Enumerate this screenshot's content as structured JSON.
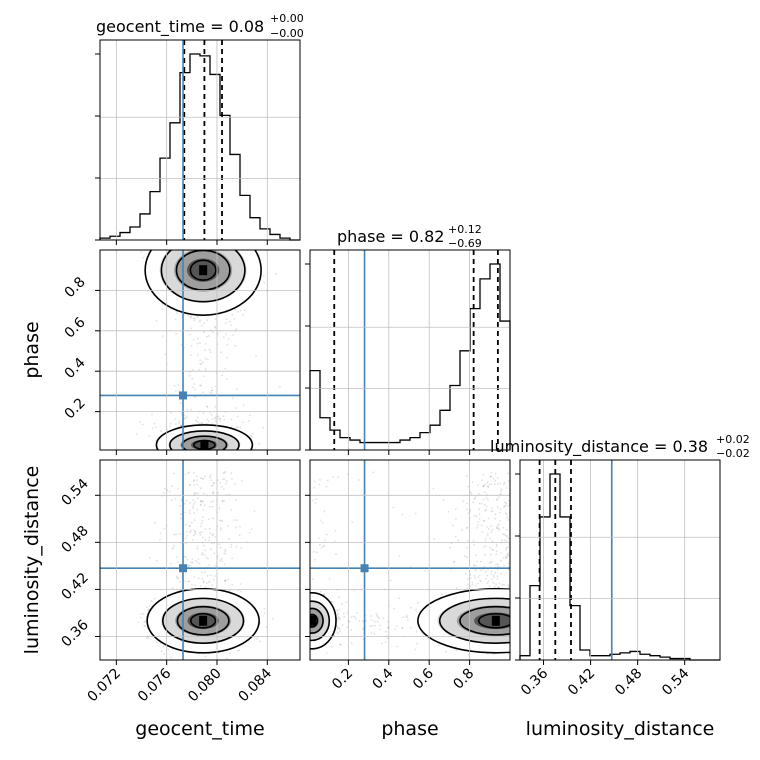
{
  "chart_data": {
    "type": "corner",
    "parameters": [
      "geocent_time",
      "phase",
      "luminosity_distance"
    ],
    "truths": {
      "geocent_time": 0.0773,
      "phase": 0.28,
      "luminosity_distance": 0.447
    },
    "titles": [
      {
        "param": "geocent_time",
        "main": "geocent_time = 0.08",
        "sup": "+0.00",
        "sub": "−0.00"
      },
      {
        "param": "phase",
        "main": "phase = 0.82",
        "sup": "+0.12",
        "sub": "−0.69"
      },
      {
        "param": "luminosity_distance",
        "main": "luminosity_distance = 0.38",
        "sup": "+0.02",
        "sub": "−0.02"
      }
    ],
    "axes": {
      "geocent_time": {
        "label": "geocent_time",
        "range": [
          0.0707,
          0.0866
        ],
        "ticks": [
          0.072,
          0.076,
          0.08,
          0.084
        ],
        "tick_labels": [
          "0.072",
          "0.076",
          "0.080",
          "0.084"
        ]
      },
      "phase": {
        "label": "phase",
        "range": [
          0.01,
          1.0
        ],
        "ticks": [
          0.2,
          0.4,
          0.6,
          0.8
        ],
        "tick_labels": [
          "0.2",
          "0.4",
          "0.6",
          "0.8"
        ]
      },
      "luminosity_distance": {
        "label": "luminosity_distance",
        "range": [
          0.33,
          0.585
        ],
        "ticks": [
          0.36,
          0.42,
          0.48,
          0.54
        ],
        "tick_labels": [
          "0.36",
          "0.42",
          "0.48",
          "0.54"
        ]
      }
    },
    "histograms": {
      "geocent_time": {
        "range": [
          0.0707,
          0.0866
        ],
        "counts": [
          1,
          2,
          4,
          7,
          14,
          26,
          44,
          63,
          90,
          100,
          99,
          89,
          67,
          46,
          24,
          12,
          6,
          3,
          1,
          0
        ],
        "quantiles": [
          0.0774,
          0.079,
          0.0804
        ]
      },
      "phase": {
        "range": [
          0.01,
          1.0
        ],
        "counts": [
          32,
          13,
          8,
          5,
          4,
          3,
          3,
          3,
          3,
          4,
          5,
          7,
          10,
          16,
          26,
          40,
          57,
          69,
          75,
          52
        ],
        "quantiles": [
          0.13,
          0.82,
          0.94
        ]
      },
      "luminosity_distance": {
        "range": [
          0.33,
          0.585
        ],
        "counts": [
          3,
          52,
          100,
          130,
          100,
          38,
          7,
          3,
          3,
          4,
          5,
          6,
          4,
          3,
          2,
          1,
          1,
          0,
          0,
          0
        ],
        "quantiles": [
          0.355,
          0.375,
          0.395
        ]
      }
    },
    "grid": true,
    "legend": "none"
  }
}
